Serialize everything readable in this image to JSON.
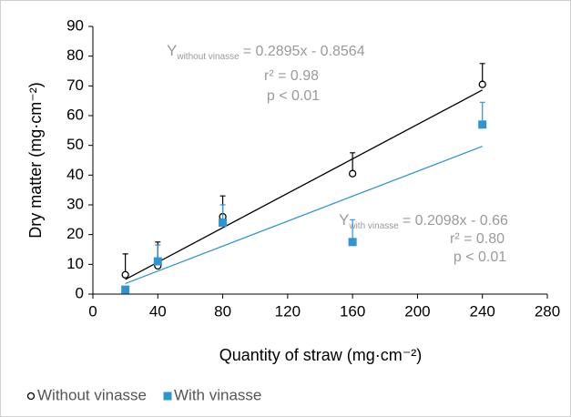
{
  "chart_data": {
    "type": "scatter",
    "y_label": "Dry matter (mg·cm⁻²)",
    "x_label": "Quantity of straw (mg·cm⁻²)",
    "xlim": [
      0,
      280
    ],
    "xticks": [
      0,
      40,
      80,
      120,
      160,
      200,
      240,
      280
    ],
    "ylim": [
      0,
      90
    ],
    "yticks": [
      0,
      10,
      20,
      30,
      40,
      50,
      60,
      70,
      80,
      90
    ],
    "grid": false,
    "legend": "bottom-left",
    "series": [
      {
        "name": "Without vinasse",
        "color": "#000000",
        "marker": "open-circle",
        "x": [
          20,
          40,
          80,
          160,
          240
        ],
        "values": [
          6.5,
          9.5,
          26,
          40.5,
          70.5
        ],
        "errors": [
          7,
          8,
          7,
          7,
          7
        ]
      },
      {
        "name": "With vinasse",
        "color": "#2e95d3",
        "marker": "square",
        "x": [
          20,
          40,
          80,
          160,
          240
        ],
        "values": [
          1.5,
          11,
          24,
          17.5,
          57
        ],
        "errors": [
          1,
          5.5,
          6,
          7.5,
          7.5
        ]
      }
    ],
    "trendlines": [
      {
        "color": "#000000",
        "x": [
          20,
          240
        ],
        "values": [
          4.93,
          68.62
        ]
      },
      {
        "color": "#2e95d3",
        "x": [
          20,
          240
        ],
        "values": [
          3.54,
          49.69
        ]
      }
    ],
    "annotations": [
      {
        "symbol": "Y",
        "subscript": "without vinasse",
        "equation": "= 0.2895x - 0.8564",
        "r2": "r² = 0.98",
        "p": "p < 0.01"
      },
      {
        "symbol": "Y",
        "subscript": "with vinasse",
        "equation": "= 0.2098x - 0.66",
        "r2": "r² = 0.80",
        "p": "p < 0.01"
      }
    ]
  }
}
